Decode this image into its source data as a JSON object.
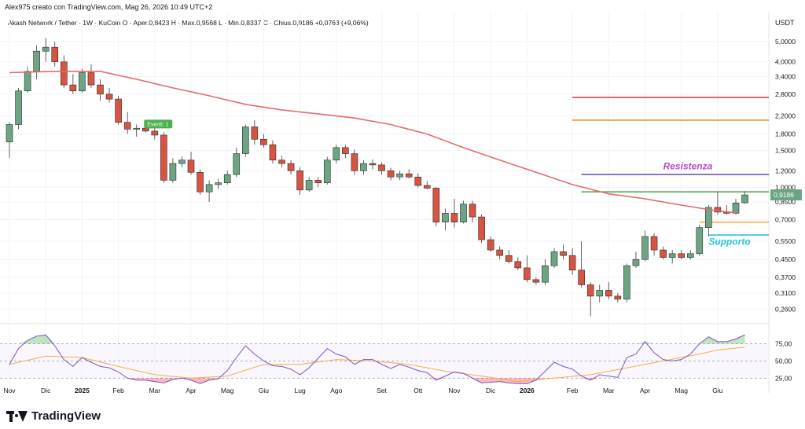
{
  "header": {
    "text": "Alex975 creato con TradingView.com, Mag 26, 2026 10:49 UTC+2"
  },
  "legend": {
    "text": "Akash Network / Tether · 1W · KuCoin  O · Aper.0,8423  H · Max.0,9568  L · Min.0,8337  C · Chius.0,9186  +0,0763 (+9,06%)"
  },
  "footer": {
    "brand": "TradingView"
  },
  "colors": {
    "up": "#6ba583",
    "down": "#d75442",
    "ma": "#e66a6a",
    "rsi": "#7e57c2",
    "rsi_ma": "#f5b041"
  },
  "chart_data": {
    "type": "candlestick",
    "currency": "USDT",
    "price_ticks": [
      "5,0000",
      "4,0000",
      "3,4000",
      "2,8000",
      "2,2000",
      "1,8000",
      "1,5000",
      "1,2000",
      "1,0000",
      "0,8500",
      "0,7000",
      "0,5500",
      "0,4500",
      "0,3700",
      "0,3100",
      "0,2600"
    ],
    "price_tick_values": [
      5.0,
      4.0,
      3.4,
      2.8,
      2.2,
      1.8,
      1.5,
      1.2,
      1.0,
      0.85,
      0.7,
      0.55,
      0.45,
      0.37,
      0.31,
      0.26
    ],
    "price_scale": "log",
    "current_price": "0,9186",
    "x_labels": [
      "Nov",
      "Dic",
      "2025",
      "Feb",
      "Mar",
      "Apr",
      "Mag",
      "Giu",
      "Lug",
      "Ago",
      "Set",
      "Ott",
      "Nov",
      "Dic",
      "2026",
      "Feb",
      "Mar",
      "Apr",
      "Mag",
      "Giu"
    ],
    "x_label_index": [
      0,
      4,
      8,
      12,
      16,
      20,
      24,
      28,
      32,
      36,
      41,
      45,
      49,
      53,
      57,
      62,
      66,
      70,
      74,
      78
    ],
    "candles": [
      [
        1.65,
        2.05,
        1.38,
        2.0
      ],
      [
        2.0,
        3.0,
        1.9,
        2.9
      ],
      [
        2.9,
        3.8,
        2.85,
        3.6
      ],
      [
        3.6,
        4.8,
        3.3,
        4.5
      ],
      [
        4.5,
        5.2,
        4.0,
        4.7
      ],
      [
        4.7,
        5.0,
        3.8,
        4.0
      ],
      [
        4.0,
        4.3,
        3.0,
        3.1
      ],
      [
        3.1,
        3.5,
        2.8,
        2.9
      ],
      [
        2.9,
        3.7,
        2.85,
        3.55
      ],
      [
        3.55,
        3.9,
        3.0,
        3.1
      ],
      [
        3.1,
        3.3,
        2.6,
        2.8
      ],
      [
        2.8,
        3.0,
        2.55,
        2.65
      ],
      [
        2.65,
        2.75,
        2.0,
        2.05
      ],
      [
        2.05,
        2.3,
        1.8,
        1.9
      ],
      [
        1.9,
        2.0,
        1.75,
        1.92
      ],
      [
        1.92,
        2.05,
        1.83,
        1.86
      ],
      [
        1.86,
        2.0,
        1.7,
        1.78
      ],
      [
        1.78,
        1.84,
        1.05,
        1.08
      ],
      [
        1.08,
        1.38,
        1.05,
        1.3
      ],
      [
        1.3,
        1.4,
        1.25,
        1.35
      ],
      [
        1.35,
        1.48,
        1.15,
        1.18
      ],
      [
        1.18,
        1.22,
        0.92,
        0.95
      ],
      [
        0.95,
        1.08,
        0.85,
        1.03
      ],
      [
        1.03,
        1.1,
        0.98,
        1.05
      ],
      [
        1.05,
        1.2,
        1.03,
        1.15
      ],
      [
        1.15,
        1.55,
        1.12,
        1.45
      ],
      [
        1.45,
        2.0,
        1.4,
        1.95
      ],
      [
        1.95,
        2.1,
        1.6,
        1.7
      ],
      [
        1.7,
        1.8,
        1.55,
        1.6
      ],
      [
        1.6,
        1.68,
        1.3,
        1.35
      ],
      [
        1.35,
        1.42,
        1.25,
        1.3
      ],
      [
        1.3,
        1.35,
        1.15,
        1.2
      ],
      [
        1.2,
        1.25,
        0.92,
        0.97
      ],
      [
        0.97,
        1.12,
        0.95,
        1.08
      ],
      [
        1.08,
        1.12,
        1.0,
        1.05
      ],
      [
        1.05,
        1.4,
        1.03,
        1.35
      ],
      [
        1.35,
        1.6,
        1.3,
        1.55
      ],
      [
        1.55,
        1.6,
        1.38,
        1.45
      ],
      [
        1.45,
        1.52,
        1.15,
        1.2
      ],
      [
        1.2,
        1.35,
        1.15,
        1.3
      ],
      [
        1.3,
        1.36,
        1.22,
        1.28
      ],
      [
        1.28,
        1.32,
        1.15,
        1.2
      ],
      [
        1.2,
        1.24,
        1.08,
        1.12
      ],
      [
        1.12,
        1.2,
        1.08,
        1.16
      ],
      [
        1.16,
        1.22,
        1.1,
        1.12
      ],
      [
        1.12,
        1.17,
        1.0,
        1.02
      ],
      [
        1.02,
        1.07,
        0.98,
        0.99
      ],
      [
        0.99,
        1.0,
        0.65,
        0.68
      ],
      [
        0.68,
        0.79,
        0.62,
        0.75
      ],
      [
        0.75,
        0.88,
        0.64,
        0.68
      ],
      [
        0.68,
        0.86,
        0.67,
        0.83
      ],
      [
        0.83,
        0.86,
        0.68,
        0.72
      ],
      [
        0.72,
        0.74,
        0.54,
        0.56
      ],
      [
        0.56,
        0.58,
        0.49,
        0.5
      ],
      [
        0.5,
        0.52,
        0.45,
        0.47
      ],
      [
        0.47,
        0.5,
        0.43,
        0.44
      ],
      [
        0.44,
        0.46,
        0.4,
        0.41
      ],
      [
        0.41,
        0.47,
        0.35,
        0.36
      ],
      [
        0.36,
        0.37,
        0.34,
        0.35
      ],
      [
        0.35,
        0.45,
        0.34,
        0.42
      ],
      [
        0.42,
        0.51,
        0.41,
        0.49
      ],
      [
        0.49,
        0.53,
        0.45,
        0.47
      ],
      [
        0.47,
        0.51,
        0.38,
        0.4
      ],
      [
        0.4,
        0.55,
        0.33,
        0.34
      ],
      [
        0.34,
        0.35,
        0.24,
        0.3
      ],
      [
        0.3,
        0.34,
        0.28,
        0.32
      ],
      [
        0.32,
        0.35,
        0.29,
        0.3
      ],
      [
        0.3,
        0.31,
        0.28,
        0.29
      ],
      [
        0.29,
        0.43,
        0.28,
        0.42
      ],
      [
        0.42,
        0.49,
        0.41,
        0.45
      ],
      [
        0.45,
        0.62,
        0.44,
        0.58
      ],
      [
        0.58,
        0.6,
        0.47,
        0.5
      ],
      [
        0.5,
        0.52,
        0.45,
        0.46
      ],
      [
        0.46,
        0.5,
        0.43,
        0.48
      ],
      [
        0.48,
        0.5,
        0.45,
        0.46
      ],
      [
        0.46,
        0.5,
        0.45,
        0.48
      ],
      [
        0.48,
        0.66,
        0.47,
        0.64
      ],
      [
        0.64,
        0.82,
        0.58,
        0.8
      ],
      [
        0.8,
        0.95,
        0.74,
        0.76
      ],
      [
        0.76,
        0.82,
        0.74,
        0.75
      ],
      [
        0.75,
        0.88,
        0.74,
        0.84
      ],
      [
        0.8423,
        0.9568,
        0.8337,
        0.9186
      ]
    ],
    "moving_average": [
      [
        0,
        3.55
      ],
      [
        5,
        3.6
      ],
      [
        10,
        3.6
      ],
      [
        14,
        3.3
      ],
      [
        18,
        3.0
      ],
      [
        22,
        2.75
      ],
      [
        26,
        2.5
      ],
      [
        30,
        2.35
      ],
      [
        34,
        2.25
      ],
      [
        38,
        2.15
      ],
      [
        42,
        2.0
      ],
      [
        46,
        1.8
      ],
      [
        50,
        1.55
      ],
      [
        54,
        1.35
      ],
      [
        58,
        1.18
      ],
      [
        62,
        1.03
      ],
      [
        66,
        0.93
      ],
      [
        70,
        0.88
      ],
      [
        74,
        0.82
      ],
      [
        78,
        0.77
      ],
      [
        80,
        0.755
      ]
    ],
    "horizontal_levels": [
      {
        "value": 2.7,
        "color": "#d7414b",
        "start": 62
      },
      {
        "value": 2.1,
        "color": "#f0922b",
        "start": 62
      },
      {
        "value": 1.15,
        "color": "#6f5aaf",
        "start": 63
      },
      {
        "value": 0.95,
        "color": "#4caf50",
        "start": 63
      },
      {
        "value": 0.68,
        "color": "#f5b041",
        "start": 76
      },
      {
        "value": 0.59,
        "color": "#26c6da",
        "start": 77
      }
    ],
    "annotations": [
      {
        "text": "Resistenza",
        "color": "#b44ad0",
        "value": 1.22,
        "index": 72
      },
      {
        "text": "Supporto",
        "color": "#26c6da",
        "value": 0.53,
        "index": 77
      },
      {
        "text": "Eventi: 1",
        "color": "#4caf50",
        "value": 1.9,
        "index": 15
      }
    ],
    "rsi_ticks": [
      "75,00",
      "50,00",
      "25,00"
    ],
    "rsi_tick_values": [
      75,
      50,
      25
    ],
    "rsi_range": [
      15,
      95
    ],
    "rsi": [
      [
        0,
        45
      ],
      [
        1,
        68
      ],
      [
        2,
        80
      ],
      [
        3,
        86
      ],
      [
        4,
        88
      ],
      [
        5,
        72
      ],
      [
        6,
        52
      ],
      [
        7,
        42
      ],
      [
        8,
        55
      ],
      [
        9,
        48
      ],
      [
        10,
        42
      ],
      [
        11,
        40
      ],
      [
        12,
        34
      ],
      [
        13,
        25
      ],
      [
        14,
        22
      ],
      [
        15,
        22
      ],
      [
        16,
        20
      ],
      [
        17,
        18
      ],
      [
        18,
        23
      ],
      [
        19,
        25
      ],
      [
        20,
        22
      ],
      [
        21,
        17
      ],
      [
        22,
        22
      ],
      [
        23,
        24
      ],
      [
        24,
        36
      ],
      [
        25,
        55
      ],
      [
        26,
        72
      ],
      [
        27,
        60
      ],
      [
        28,
        50
      ],
      [
        29,
        43
      ],
      [
        30,
        42
      ],
      [
        31,
        38
      ],
      [
        32,
        30
      ],
      [
        33,
        40
      ],
      [
        34,
        54
      ],
      [
        35,
        68
      ],
      [
        36,
        60
      ],
      [
        37,
        56
      ],
      [
        38,
        45
      ],
      [
        39,
        52
      ],
      [
        40,
        52
      ],
      [
        41,
        45
      ],
      [
        42,
        39
      ],
      [
        43,
        45
      ],
      [
        44,
        41
      ],
      [
        45,
        36
      ],
      [
        46,
        33
      ],
      [
        47,
        22
      ],
      [
        48,
        28
      ],
      [
        49,
        34
      ],
      [
        50,
        32
      ],
      [
        51,
        25
      ],
      [
        52,
        18
      ],
      [
        53,
        19
      ],
      [
        54,
        20
      ],
      [
        55,
        18
      ],
      [
        56,
        17
      ],
      [
        57,
        17
      ],
      [
        58,
        22
      ],
      [
        59,
        35
      ],
      [
        60,
        48
      ],
      [
        61,
        42
      ],
      [
        62,
        38
      ],
      [
        63,
        28
      ],
      [
        64,
        22
      ],
      [
        65,
        30
      ],
      [
        66,
        28
      ],
      [
        67,
        26
      ],
      [
        68,
        55
      ],
      [
        69,
        60
      ],
      [
        70,
        78
      ],
      [
        71,
        62
      ],
      [
        72,
        52
      ],
      [
        73,
        50
      ],
      [
        74,
        52
      ],
      [
        75,
        60
      ],
      [
        76,
        75
      ],
      [
        77,
        85
      ],
      [
        78,
        78
      ],
      [
        79,
        78
      ],
      [
        80,
        82
      ],
      [
        81,
        88
      ]
    ],
    "rsi_ma": [
      [
        0,
        45
      ],
      [
        4,
        57
      ],
      [
        8,
        55
      ],
      [
        12,
        42
      ],
      [
        16,
        30
      ],
      [
        20,
        25
      ],
      [
        24,
        28
      ],
      [
        28,
        45
      ],
      [
        32,
        45
      ],
      [
        36,
        52
      ],
      [
        40,
        50
      ],
      [
        44,
        45
      ],
      [
        48,
        35
      ],
      [
        52,
        28
      ],
      [
        56,
        20
      ],
      [
        60,
        25
      ],
      [
        64,
        30
      ],
      [
        68,
        40
      ],
      [
        72,
        50
      ],
      [
        76,
        60
      ],
      [
        78,
        66
      ],
      [
        81,
        70
      ]
    ]
  }
}
